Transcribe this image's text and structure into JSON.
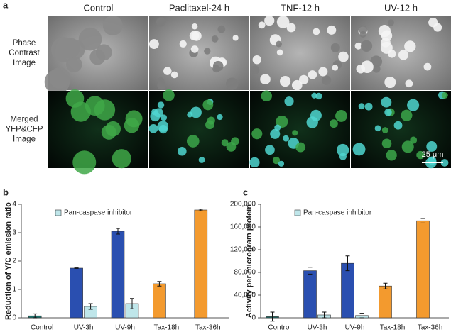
{
  "figure": {
    "panel_labels": [
      "a",
      "b",
      "c"
    ]
  },
  "images": {
    "column_headers": [
      "Control",
      "Paclitaxel-24 h",
      "TNF-12 h",
      "UV-12 h"
    ],
    "row_labels": [
      [
        "Phase",
        "Contrast",
        "Image"
      ],
      [
        "Merged",
        "YFP&CFP",
        "Image"
      ]
    ],
    "scale_bar": "25 μm"
  },
  "chart_data": [
    {
      "type": "bar",
      "y_label": "Reduction of Y/C emission ratio",
      "categories": [
        "Control",
        "UV-3h",
        "UV-9h",
        "Tax-18h",
        "Tax-36h"
      ],
      "series": [
        {
          "colors": [
            "#1f6f6a",
            "#2a4fb0",
            "#2a4fb0",
            "#f39a2e",
            "#f39a2e"
          ],
          "values": [
            0.07,
            1.75,
            3.05,
            1.2,
            3.8
          ],
          "errors": [
            0.07,
            0.01,
            0.1,
            0.08,
            0.03
          ]
        },
        {
          "name": "Pan-caspase inhibitor",
          "color": "#bfe6ea",
          "values": [
            null,
            0.4,
            0.5,
            null,
            null
          ],
          "errors": [
            null,
            0.1,
            0.18,
            null,
            null
          ]
        }
      ],
      "ylim": [
        0,
        4
      ],
      "yticks": [
        0,
        1,
        2,
        3,
        4
      ],
      "legend": "upper left"
    },
    {
      "type": "bar",
      "y_label": "Activity per microgram protein",
      "categories": [
        "Control",
        "UV-3h",
        "UV-9h",
        "Tax-18h",
        "Tax-36h"
      ],
      "series": [
        {
          "colors": [
            "#1f6f6a",
            "#2a4fb0",
            "#2a4fb0",
            "#f39a2e",
            "#f39a2e"
          ],
          "values": [
            2000,
            83000,
            96000,
            56000,
            171000
          ],
          "errors": [
            8000,
            6000,
            13000,
            5000,
            4000
          ]
        },
        {
          "name": "Pan-caspase inhibitor",
          "color": "#bfe6ea",
          "values": [
            null,
            5000,
            4000,
            null,
            null
          ],
          "errors": [
            null,
            5000,
            4000,
            null,
            null
          ]
        }
      ],
      "ylim": [
        0,
        200000
      ],
      "yticks": [
        0,
        {
          "value": 40000,
          "label": "40,000"
        },
        {
          "value": 80000,
          "label": "80,000"
        },
        {
          "value": 120000,
          "label": "120,000"
        },
        {
          "value": 160000,
          "label": "160,000"
        },
        {
          "value": 200000,
          "label": "200,000"
        }
      ],
      "legend": "upper left"
    }
  ]
}
